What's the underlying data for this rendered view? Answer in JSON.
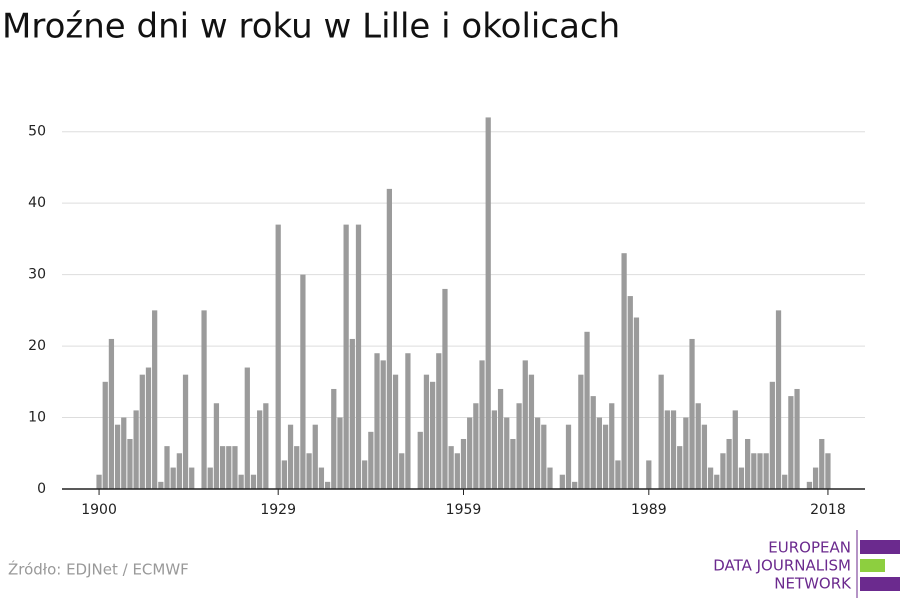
{
  "chart_data": {
    "type": "bar",
    "title": "Mroźne dni w roku w Lille i okolicach",
    "x": [
      1900,
      1901,
      1902,
      1903,
      1904,
      1905,
      1906,
      1907,
      1908,
      1909,
      1910,
      1911,
      1912,
      1913,
      1914,
      1915,
      1916,
      1917,
      1918,
      1919,
      1920,
      1921,
      1922,
      1923,
      1924,
      1925,
      1926,
      1927,
      1928,
      1929,
      1930,
      1931,
      1932,
      1933,
      1934,
      1935,
      1936,
      1937,
      1938,
      1939,
      1940,
      1941,
      1942,
      1943,
      1944,
      1945,
      1946,
      1947,
      1948,
      1949,
      1950,
      1951,
      1952,
      1953,
      1954,
      1955,
      1956,
      1957,
      1958,
      1959,
      1960,
      1961,
      1962,
      1963,
      1964,
      1965,
      1966,
      1967,
      1968,
      1969,
      1970,
      1971,
      1972,
      1973,
      1974,
      1975,
      1976,
      1977,
      1978,
      1979,
      1980,
      1981,
      1982,
      1983,
      1984,
      1985,
      1986,
      1987,
      1988,
      1989,
      1990,
      1991,
      1992,
      1993,
      1994,
      1995,
      1996,
      1997,
      1998,
      1999,
      2000,
      2001,
      2002,
      2003,
      2004,
      2005,
      2006,
      2007,
      2008,
      2009,
      2010,
      2011,
      2012,
      2013,
      2014,
      2015,
      2016,
      2017,
      2018
    ],
    "values": [
      2,
      15,
      21,
      9,
      10,
      7,
      11,
      16,
      17,
      25,
      1,
      6,
      3,
      5,
      16,
      3,
      0,
      25,
      3,
      12,
      6,
      6,
      6,
      2,
      17,
      2,
      11,
      12,
      0,
      37,
      4,
      9,
      6,
      30,
      5,
      9,
      3,
      1,
      14,
      10,
      37,
      21,
      37,
      4,
      8,
      19,
      18,
      42,
      16,
      5,
      19,
      0,
      8,
      16,
      15,
      19,
      28,
      6,
      5,
      7,
      10,
      12,
      18,
      52,
      11,
      14,
      10,
      7,
      12,
      18,
      16,
      10,
      9,
      3,
      0,
      2,
      9,
      1,
      16,
      22,
      13,
      10,
      9,
      12,
      4,
      33,
      27,
      24,
      0,
      4,
      0,
      16,
      11,
      11,
      6,
      10,
      21,
      12,
      9,
      3,
      2,
      5,
      7,
      11,
      3,
      7,
      5,
      5,
      5,
      15,
      25,
      2,
      13,
      14,
      0,
      1,
      3,
      7,
      5
    ],
    "color": "#9b9b9b",
    "xlim": [
      1894,
      2024
    ],
    "xticks": [
      1900,
      1929,
      1959,
      1989,
      2018
    ],
    "ylim": [
      0,
      55
    ],
    "yticks": [
      0,
      10,
      20,
      30,
      40,
      50
    ],
    "grid": true
  },
  "footer": {
    "source": "Źródło: EDJNet / ECMWF",
    "logo": [
      "EUROPEAN",
      "DATA JOURNALISM",
      "NETWORK"
    ]
  }
}
